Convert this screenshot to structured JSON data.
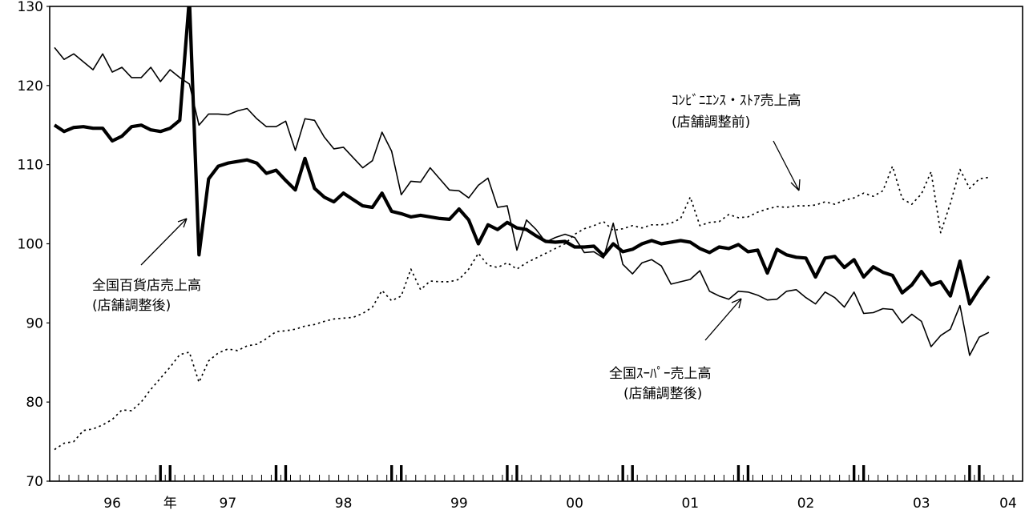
{
  "chart_data": {
    "type": "line",
    "title": "",
    "xlabel": "",
    "ylabel": "",
    "ylim": [
      70,
      130
    ],
    "yticks": [
      70,
      80,
      90,
      100,
      110,
      120,
      130
    ],
    "x_start": "1995-12",
    "x_step": "month",
    "year_labels": [
      {
        "label": "96",
        "month_index": 6
      },
      {
        "label": "年",
        "month_index": 12
      },
      {
        "label": "97",
        "month_index": 18
      },
      {
        "label": "98",
        "month_index": 30
      },
      {
        "label": "99",
        "month_index": 42
      },
      {
        "label": "00",
        "month_index": 54
      },
      {
        "label": "01",
        "month_index": 66
      },
      {
        "label": "02",
        "month_index": 78
      },
      {
        "label": "03",
        "month_index": 90
      },
      {
        "label": "04",
        "month_index": 99
      }
    ],
    "year_boundary_month_index": [
      11,
      12,
      23,
      24,
      35,
      36,
      47,
      48,
      59,
      60,
      71,
      72,
      83,
      84,
      95,
      96
    ],
    "series": [
      {
        "name": "全国百貨店売上高 (店舗調整後)",
        "style": "thick",
        "color": "#000000",
        "values": [
          115.0,
          114.2,
          114.7,
          114.8,
          114.6,
          114.6,
          113.0,
          113.6,
          114.8,
          115.0,
          114.4,
          114.2,
          114.6,
          115.6,
          131.0,
          98.6,
          108.2,
          109.8,
          110.2,
          110.4,
          110.6,
          110.2,
          108.9,
          109.3,
          108.0,
          106.8,
          110.8,
          107.0,
          105.9,
          105.3,
          106.4,
          105.6,
          104.8,
          104.6,
          106.4,
          104.1,
          103.8,
          103.4,
          103.6,
          103.4,
          103.2,
          103.1,
          104.4,
          103.0,
          100.0,
          102.4,
          101.8,
          102.7,
          102.0,
          101.8,
          101.0,
          100.3,
          100.2,
          100.3,
          99.6,
          99.6,
          99.7,
          98.5,
          100.0,
          99.0,
          99.3,
          100.0,
          100.4,
          100.0,
          100.2,
          100.4,
          100.2,
          99.4,
          98.9,
          99.6,
          99.4,
          99.9,
          99.0,
          99.2,
          96.3,
          99.3,
          98.6,
          98.3,
          98.2,
          95.8,
          98.2,
          98.4,
          97.0,
          98.0,
          95.8,
          97.1,
          96.4,
          96.0,
          93.8,
          94.8,
          96.5,
          94.8,
          95.2,
          93.4,
          97.8,
          92.4,
          94.3,
          95.9
        ]
      },
      {
        "name": "全国ｽｰﾊﾟｰ売上高 (店舗調整後)",
        "style": "thin",
        "color": "#000000",
        "values": [
          124.8,
          123.3,
          124.0,
          123.0,
          122.0,
          124.0,
          121.7,
          122.3,
          121.0,
          121.0,
          122.3,
          120.5,
          122.0,
          121.0,
          120.2,
          115.0,
          116.4,
          116.4,
          116.3,
          116.8,
          117.1,
          115.8,
          114.8,
          114.8,
          115.5,
          111.8,
          115.8,
          115.6,
          113.5,
          112.0,
          112.2,
          110.9,
          109.6,
          110.5,
          114.1,
          111.7,
          106.2,
          107.9,
          107.8,
          109.6,
          108.2,
          106.8,
          106.7,
          105.8,
          107.4,
          108.3,
          104.6,
          104.8,
          99.2,
          103.0,
          101.8,
          100.2,
          100.8,
          101.2,
          100.8,
          98.9,
          99.0,
          98.2,
          102.6,
          97.4,
          96.2,
          97.6,
          98.0,
          97.2,
          94.9,
          95.2,
          95.5,
          96.6,
          94.0,
          93.4,
          93.0,
          94.0,
          93.9,
          93.5,
          92.9,
          93.0,
          94.0,
          94.2,
          93.2,
          92.4,
          93.9,
          93.2,
          92.0,
          93.9,
          91.2,
          91.3,
          91.8,
          91.7,
          90.0,
          91.1,
          90.2,
          87.0,
          88.4,
          89.2,
          92.2,
          85.9,
          88.2,
          88.8
        ]
      },
      {
        "name": "ｺﾝﾋﾞﾆｴﾝｽ・ｽﾄｱ売上高 (店舗調整前)",
        "style": "dotted",
        "color": "#000000",
        "values": [
          74.0,
          74.8,
          75.0,
          76.4,
          76.6,
          77.1,
          77.8,
          79.0,
          78.9,
          80.0,
          81.6,
          83.0,
          84.4,
          86.0,
          86.3,
          82.5,
          85.2,
          86.2,
          86.7,
          86.5,
          87.1,
          87.3,
          88.0,
          88.9,
          89.0,
          89.2,
          89.6,
          89.8,
          90.2,
          90.5,
          90.6,
          90.7,
          91.2,
          92.0,
          94.1,
          92.8,
          93.4,
          96.8,
          94.2,
          95.3,
          95.2,
          95.2,
          95.5,
          96.8,
          98.8,
          97.3,
          97.0,
          97.6,
          96.8,
          97.6,
          98.2,
          98.8,
          99.4,
          100.0,
          101.2,
          101.9,
          102.3,
          102.8,
          101.7,
          101.9,
          102.3,
          102.0,
          102.4,
          102.4,
          102.6,
          103.2,
          105.9,
          102.3,
          102.7,
          102.8,
          103.7,
          103.3,
          103.4,
          104.0,
          104.4,
          104.7,
          104.6,
          104.8,
          104.8,
          104.9,
          105.3,
          105.0,
          105.5,
          105.8,
          106.4,
          106.0,
          106.7,
          109.8,
          105.7,
          105.0,
          106.3,
          109.1,
          101.4,
          105.1,
          109.4,
          107.0,
          108.2,
          108.4
        ]
      }
    ],
    "annotations": [
      {
        "id": "dept",
        "lines": [
          "全国百貨店売上高",
          "(店舗調整後)"
        ]
      },
      {
        "id": "super",
        "lines": [
          "全国ｽｰﾊﾟｰ売上高",
          "(店舗調整後)"
        ]
      },
      {
        "id": "conv",
        "lines": [
          "ｺﾝﾋﾞﾆｴﾝｽ・ｽﾄｱ売上高",
          "(店舗調整前)"
        ]
      }
    ]
  }
}
